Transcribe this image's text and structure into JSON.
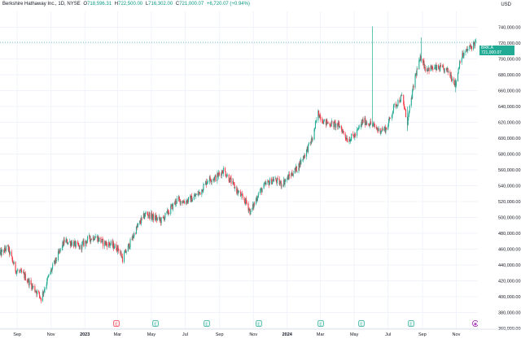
{
  "header": {
    "instrument": "Berkshire Hathaway Inc., 1D, NYSE",
    "open_label": "O",
    "open": "718,596.31",
    "high_label": "H",
    "high": "722,500.00",
    "low_label": "L",
    "low": "716,302.00",
    "close_label": "C",
    "close": "721,000.07",
    "change": "+6,720.07 (+0.94%)"
  },
  "currency": "USD",
  "last_price": {
    "symbol": "BRK.A",
    "price": "721,000.07",
    "countdown": "00:38:10"
  },
  "event_markers": [
    {
      "letter": "E",
      "kind": "earnings-bad"
    },
    {
      "letter": "E",
      "kind": "earnings"
    },
    {
      "letter": "E",
      "kind": "earnings"
    },
    {
      "letter": "E",
      "kind": "earnings"
    },
    {
      "letter": "E",
      "kind": "earnings"
    },
    {
      "letter": "E",
      "kind": "earnings"
    },
    {
      "letter": "E",
      "kind": "earnings"
    },
    {
      "letter": "✱",
      "kind": "upcoming"
    }
  ],
  "colors": {
    "up": "#22ab94",
    "down": "#f23645",
    "grid": "#f0f3fa",
    "text": "#131722",
    "upcoming": "#9c27b0"
  },
  "chart_data": {
    "type": "candlestick",
    "ylim": [
      360000,
      760000
    ],
    "y_ticks": [
      "360,000.00",
      "380,000.00",
      "400,000.00",
      "420,000.00",
      "440,000.00",
      "460,000.00",
      "480,000.00",
      "500,000.00",
      "520,000.00",
      "540,000.00",
      "560,000.00",
      "580,000.00",
      "600,000.00",
      "620,000.00",
      "640,000.00",
      "660,000.00",
      "680,000.00",
      "700,000.00",
      "720,000.00",
      "740,000.00"
    ],
    "x_ticks": [
      "Sep",
      "Nov",
      "2023",
      "Mar",
      "May",
      "Jul",
      "Sep",
      "Nov",
      "2024",
      "Mar",
      "May",
      "Jul",
      "Sep",
      "Nov"
    ],
    "x_range": [
      "2022-08-01",
      "2024-12-10"
    ],
    "close_path": [
      [
        "2022-08-01",
        454000
      ],
      [
        "2022-08-15",
        462000
      ],
      [
        "2022-08-29",
        434000
      ],
      [
        "2022-09-12",
        428000
      ],
      [
        "2022-09-26",
        415000
      ],
      [
        "2022-10-10",
        403000
      ],
      [
        "2022-10-14",
        398000
      ],
      [
        "2022-10-28",
        426000
      ],
      [
        "2022-11-11",
        448000
      ],
      [
        "2022-11-25",
        470000
      ],
      [
        "2022-12-09",
        468000
      ],
      [
        "2022-12-23",
        462000
      ],
      [
        "2023-01-06",
        472000
      ],
      [
        "2023-01-20",
        476000
      ],
      [
        "2023-02-03",
        468000
      ],
      [
        "2023-02-17",
        466000
      ],
      [
        "2023-03-03",
        460000
      ],
      [
        "2023-03-10",
        448000
      ],
      [
        "2023-03-24",
        468000
      ],
      [
        "2023-04-07",
        490000
      ],
      [
        "2023-04-21",
        505000
      ],
      [
        "2023-05-05",
        500000
      ],
      [
        "2023-05-19",
        496000
      ],
      [
        "2023-06-02",
        508000
      ],
      [
        "2023-06-16",
        522000
      ],
      [
        "2023-06-30",
        520000
      ],
      [
        "2023-07-14",
        524000
      ],
      [
        "2023-07-28",
        532000
      ],
      [
        "2023-08-11",
        548000
      ],
      [
        "2023-08-25",
        550000
      ],
      [
        "2023-09-08",
        560000
      ],
      [
        "2023-09-22",
        545000
      ],
      [
        "2023-10-06",
        530000
      ],
      [
        "2023-10-20",
        518000
      ],
      [
        "2023-10-27",
        506000
      ],
      [
        "2023-11-10",
        530000
      ],
      [
        "2023-11-24",
        542000
      ],
      [
        "2023-12-08",
        548000
      ],
      [
        "2023-12-22",
        542000
      ],
      [
        "2024-01-05",
        552000
      ],
      [
        "2024-01-19",
        562000
      ],
      [
        "2024-02-02",
        580000
      ],
      [
        "2024-02-16",
        600000
      ],
      [
        "2024-02-26",
        632000
      ],
      [
        "2024-03-08",
        620000
      ],
      [
        "2024-03-22",
        618000
      ],
      [
        "2024-04-05",
        615000
      ],
      [
        "2024-04-19",
        598000
      ],
      [
        "2024-05-03",
        604000
      ],
      [
        "2024-05-17",
        622000
      ],
      [
        "2024-05-31",
        618000
      ],
      [
        "2024-06-14",
        610000
      ],
      [
        "2024-06-28",
        612000
      ],
      [
        "2024-07-12",
        640000
      ],
      [
        "2024-07-26",
        652000
      ],
      [
        "2024-08-05",
        620000
      ],
      [
        "2024-08-19",
        678000
      ],
      [
        "2024-08-30",
        704000
      ],
      [
        "2024-09-06",
        688000
      ],
      [
        "2024-09-20",
        688000
      ],
      [
        "2024-10-04",
        688000
      ],
      [
        "2024-10-18",
        684000
      ],
      [
        "2024-10-31",
        668000
      ],
      [
        "2024-11-08",
        700000
      ],
      [
        "2024-11-22",
        712000
      ],
      [
        "2024-12-06",
        721000
      ]
    ],
    "spikes": [
      {
        "date": "2024-06-03",
        "low": 615000,
        "high": 741000
      },
      {
        "date": "2024-08-05",
        "low": 609000,
        "high": 640000
      },
      {
        "date": "2024-08-30",
        "low": 695000,
        "high": 727000
      },
      {
        "date": "2024-10-31",
        "low": 658000,
        "high": 675000
      }
    ]
  }
}
